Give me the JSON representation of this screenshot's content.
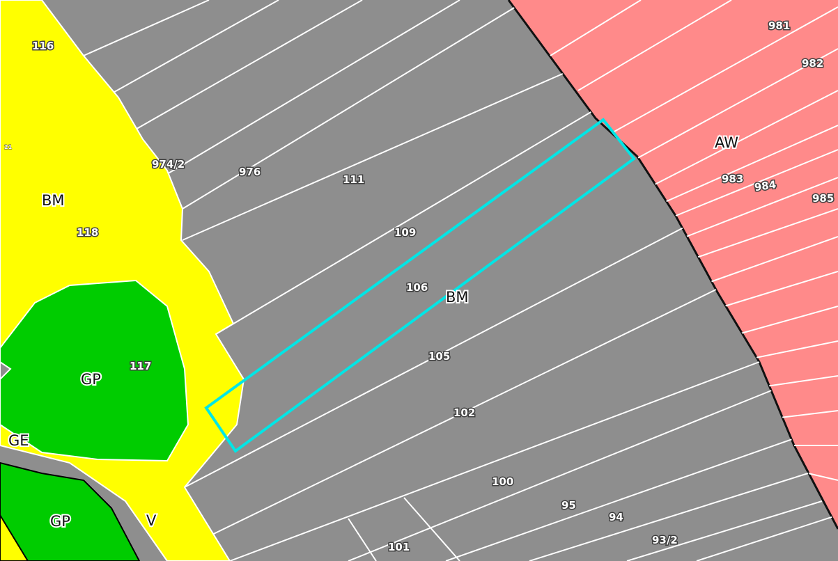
{
  "map": {
    "colors": {
      "built_mixed": "#8e8e8e",
      "residential": "#ff8a8a",
      "green": "#00cc00",
      "road": "#ffff00",
      "selection": "#00e6e6",
      "parcel_border": "#ffffff"
    },
    "zone_labels": {
      "bm_west": "BM",
      "bm_center": "BM",
      "aw": "AW",
      "gp_upper": "GP",
      "gp_lower": "GP",
      "ge": "GE",
      "v": "V"
    },
    "parcel_numbers": {
      "p116": "116",
      "p974_2": "974/2",
      "p976": "976",
      "p111": "111",
      "p109": "109",
      "p106": "106",
      "p105": "105",
      "p102": "102",
      "p100": "100",
      "p95": "95",
      "p94": "94",
      "p93_2": "93/2",
      "p101": "101",
      "p118": "118",
      "p117": "117",
      "p981": "981",
      "p982": "982",
      "p983": "983",
      "p984": "984",
      "p985": "985",
      "p21": "21"
    },
    "selected_parcel": "106"
  }
}
